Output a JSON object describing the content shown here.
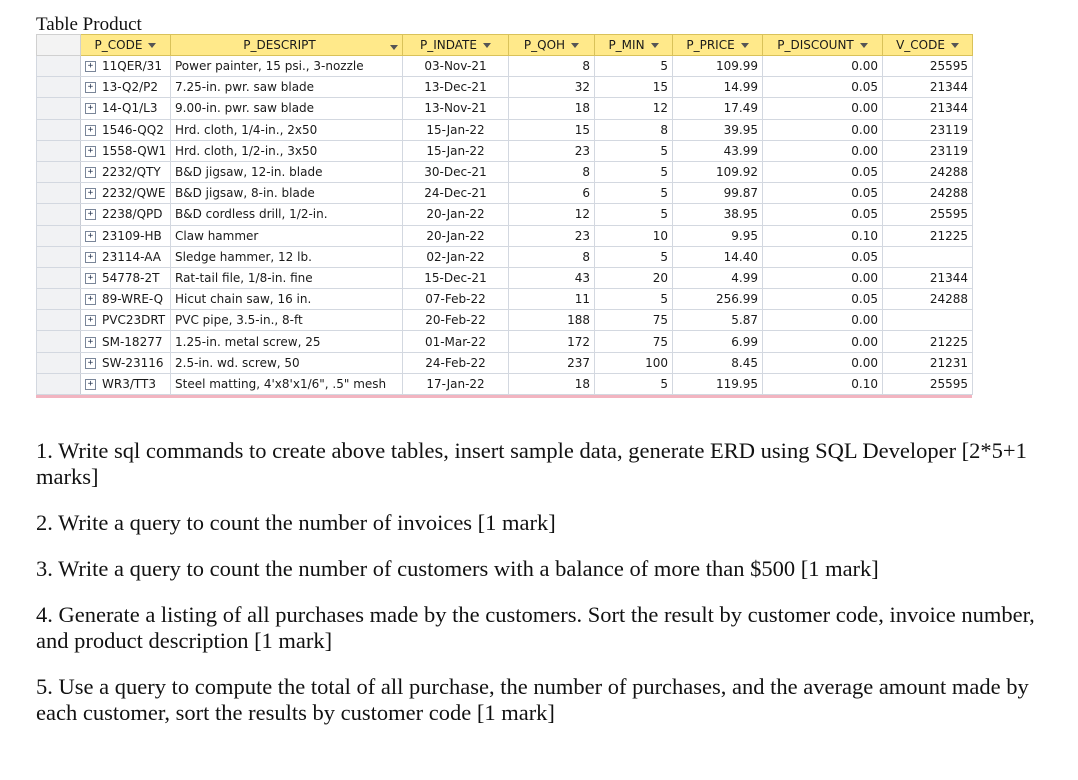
{
  "table_title": "Table Product",
  "columns": [
    "P_CODE",
    "P_DESCRIPT",
    "P_INDATE",
    "P_QOH",
    "P_MIN",
    "P_PRICE",
    "P_DISCOUNT",
    "V_CODE"
  ],
  "rows": [
    [
      "11QER/31",
      "Power painter, 15 psi., 3-nozzle",
      "03-Nov-21",
      "8",
      "5",
      "109.99",
      "0.00",
      "25595"
    ],
    [
      "13-Q2/P2",
      "7.25-in. pwr. saw blade",
      "13-Dec-21",
      "32",
      "15",
      "14.99",
      "0.05",
      "21344"
    ],
    [
      "14-Q1/L3",
      "9.00-in. pwr. saw blade",
      "13-Nov-21",
      "18",
      "12",
      "17.49",
      "0.00",
      "21344"
    ],
    [
      "1546-QQ2",
      "Hrd. cloth, 1/4-in., 2x50",
      "15-Jan-22",
      "15",
      "8",
      "39.95",
      "0.00",
      "23119"
    ],
    [
      "1558-QW1",
      "Hrd. cloth, 1/2-in., 3x50",
      "15-Jan-22",
      "23",
      "5",
      "43.99",
      "0.00",
      "23119"
    ],
    [
      "2232/QTY",
      "B&D jigsaw, 12-in. blade",
      "30-Dec-21",
      "8",
      "5",
      "109.92",
      "0.05",
      "24288"
    ],
    [
      "2232/QWE",
      "B&D jigsaw, 8-in. blade",
      "24-Dec-21",
      "6",
      "5",
      "99.87",
      "0.05",
      "24288"
    ],
    [
      "2238/QPD",
      "B&D cordless drill, 1/2-in.",
      "20-Jan-22",
      "12",
      "5",
      "38.95",
      "0.05",
      "25595"
    ],
    [
      "23109-HB",
      "Claw hammer",
      "20-Jan-22",
      "23",
      "10",
      "9.95",
      "0.10",
      "21225"
    ],
    [
      "23114-AA",
      "Sledge hammer, 12 lb.",
      "02-Jan-22",
      "8",
      "5",
      "14.40",
      "0.05",
      ""
    ],
    [
      "54778-2T",
      "Rat-tail file, 1/8-in. fine",
      "15-Dec-21",
      "43",
      "20",
      "4.99",
      "0.00",
      "21344"
    ],
    [
      "89-WRE-Q",
      "Hicut chain saw, 16 in.",
      "07-Feb-22",
      "11",
      "5",
      "256.99",
      "0.05",
      "24288"
    ],
    [
      "PVC23DRT",
      "PVC pipe, 3.5-in., 8-ft",
      "20-Feb-22",
      "188",
      "75",
      "5.87",
      "0.00",
      ""
    ],
    [
      "SM-18277",
      "1.25-in. metal screw, 25",
      "01-Mar-22",
      "172",
      "75",
      "6.99",
      "0.00",
      "21225"
    ],
    [
      "SW-23116",
      "2.5-in. wd. screw, 50",
      "24-Feb-22",
      "237",
      "100",
      "8.45",
      "0.00",
      "21231"
    ],
    [
      "WR3/TT3",
      "Steel matting, 4'x8'x1/6\", .5\" mesh",
      "17-Jan-22",
      "18",
      "5",
      "119.95",
      "0.10",
      "25595"
    ]
  ],
  "expand_glyph": "+",
  "questions": [
    "1. Write sql commands to create above tables, insert sample data, generate ERD using SQL Developer [2*5+1 marks]",
    "2. Write a query to count the number of invoices [1 mark]",
    "3.  Write a query to count the number of customers with a balance of more than $500 [1 mark]",
    "4.  Generate a listing of all purchases made by the customers. Sort the result by customer code, invoice number, and product description [1 mark]",
    "5. Use a query to compute the total of all purchase, the number of purchases, and the average amount made by each customer, sort the results by customer code [1 mark]"
  ]
}
